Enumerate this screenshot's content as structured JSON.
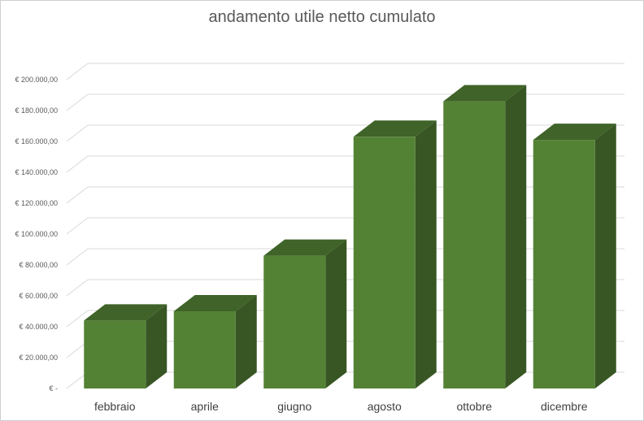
{
  "chart_data": {
    "type": "bar",
    "title": "andamento utile netto cumulato",
    "xlabel": "",
    "ylabel": "",
    "categories": [
      "febbraio",
      "aprile",
      "giugno",
      "agosto",
      "ottobre",
      "dicembre"
    ],
    "values": [
      44000,
      50000,
      86000,
      163000,
      186000,
      161000
    ],
    "ylim": [
      0,
      200000
    ],
    "yticks": [
      0,
      20000,
      40000,
      60000,
      80000,
      100000,
      120000,
      140000,
      160000,
      180000,
      200000
    ],
    "ytick_labels": [
      "€ -",
      "€ 20.000,00",
      "€ 40.000,00",
      "€ 60.000,00",
      "€ 80.000,00",
      "€ 100.000,00",
      "€ 120.000,00",
      "€ 140.000,00",
      "€ 160.000,00",
      "€ 180.000,00",
      "€ 200.000,00"
    ],
    "grid": true,
    "legend": "none",
    "style": "3d-column",
    "colors": {
      "front": "#548235",
      "side": "#375623",
      "top": "#3f6328",
      "grid": "#d9d9d9"
    }
  }
}
